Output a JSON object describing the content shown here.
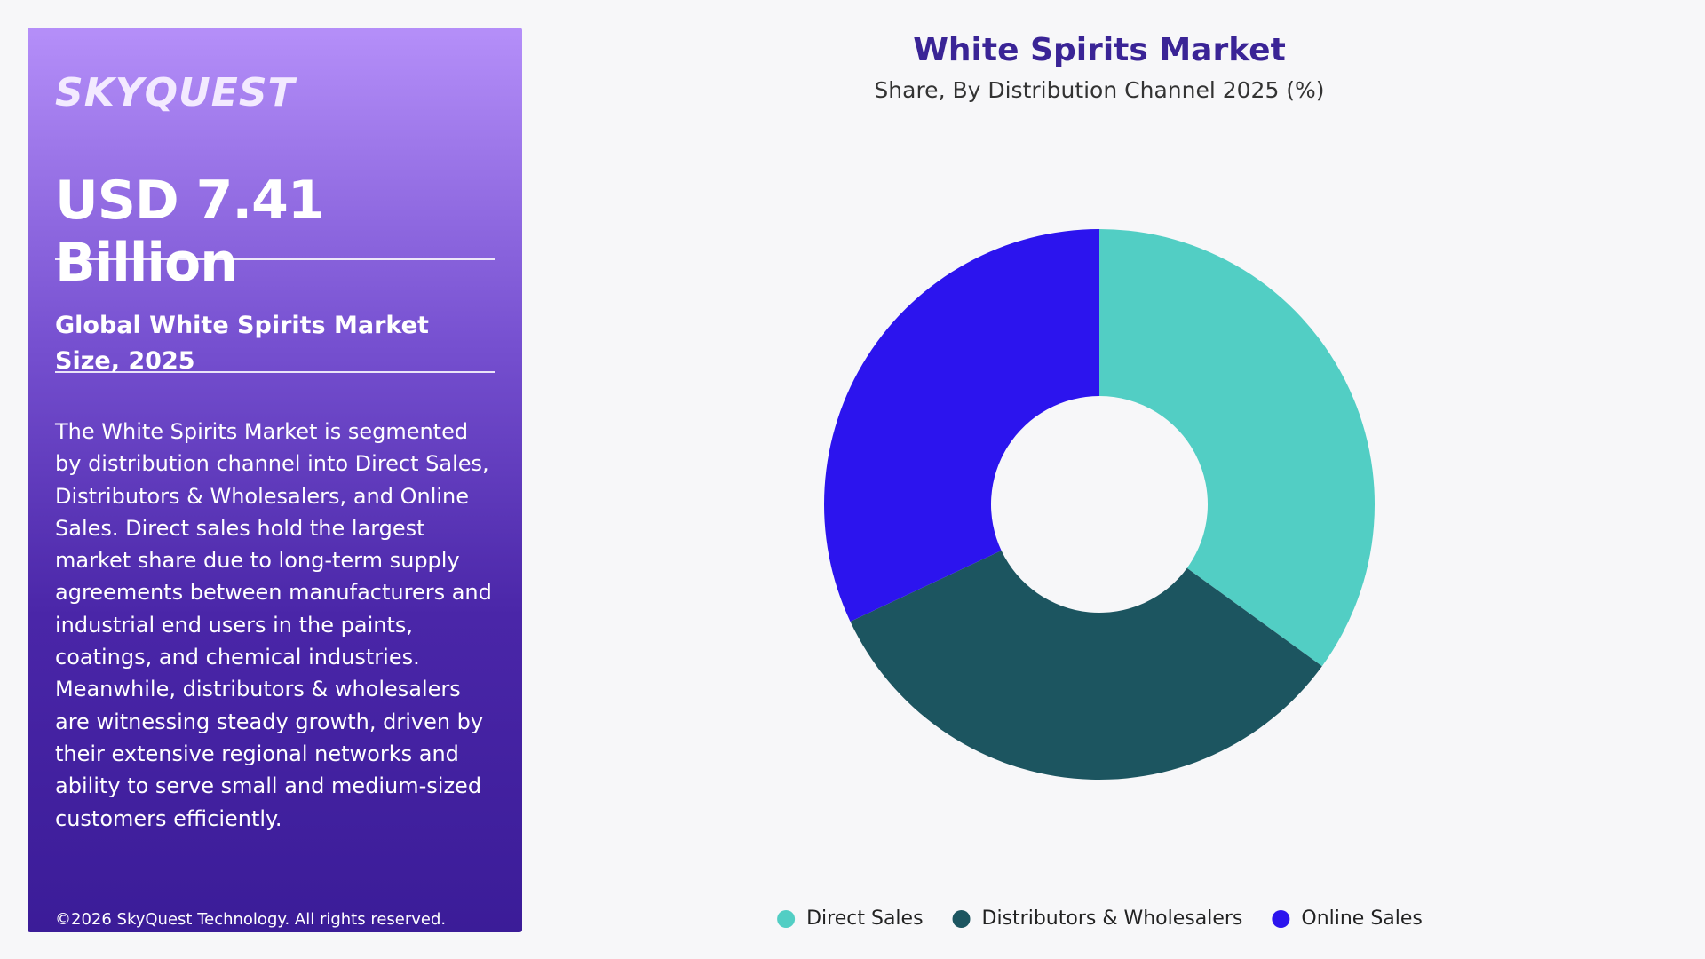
{
  "panel": {
    "brand": "SKYQUEST",
    "headline": "USD 7.41 Billion",
    "subtitle": "Global White Spirits Market Size, 2025",
    "description": "The White Spirits Market is segmented by distribution channel into Direct Sales, Distributors & Wholesalers, and Online Sales. Direct sales hold the largest market share due to long-term supply agreements between manufacturers and industrial end users in the paints, coatings, and chemical industries. Meanwhile, distributors & wholesalers are witnessing steady growth, driven by their extensive regional networks and ability to serve small and medium-sized customers efficiently.",
    "copyright": "©2026 SkyQuest Technology. All rights reserved."
  },
  "chart_data": {
    "type": "donut",
    "title": "White Spirits Market",
    "subtitle": "Share, By Distribution Channel 2025 (%)",
    "categories": [
      "Direct Sales",
      "Distributors & Wholesalers",
      "Online Sales"
    ],
    "values": [
      35,
      33,
      32
    ],
    "colors": [
      "#52cec4",
      "#1c5560",
      "#2c14ee"
    ]
  }
}
